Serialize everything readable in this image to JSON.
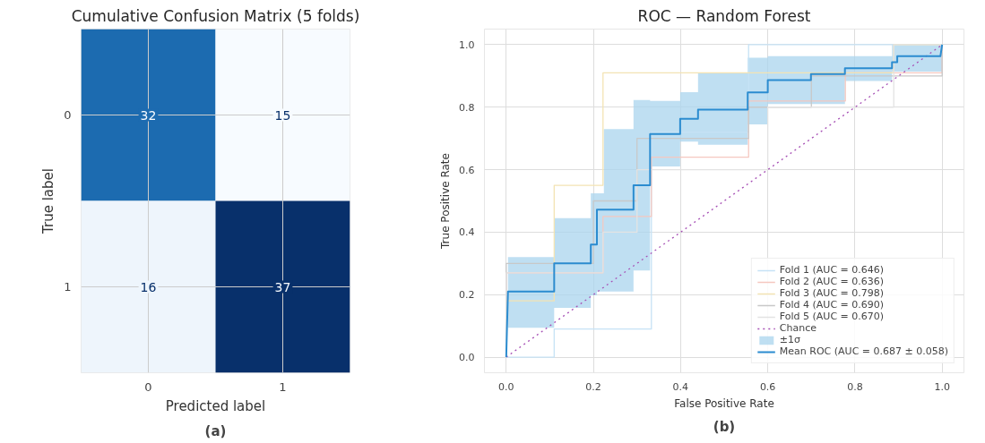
{
  "chart_data": [
    {
      "type": "heatmap",
      "title": "Cumulative Confusion Matrix (5 folds)",
      "xlabel": "Predicted label",
      "ylabel": "True label",
      "categories": [
        "0",
        "1"
      ],
      "y_categories": [
        "0",
        "1"
      ],
      "cells": [
        [
          32,
          15
        ],
        [
          16,
          37
        ]
      ],
      "data_labels": true,
      "grid": true,
      "annotations": [
        "(a)"
      ]
    },
    {
      "type": "line",
      "title": "ROC — Random Forest",
      "xlabel": "False Positive Rate",
      "ylabel": "True Positive Rate",
      "xlim": [
        -0.05,
        1.05
      ],
      "ylim": [
        -0.05,
        1.05
      ],
      "xticks": [
        {
          "value": 0,
          "label": "0.0"
        },
        0.2,
        0.4,
        0.6,
        0.8,
        {
          "value": 1,
          "label": "1.0"
        }
      ],
      "yticks": [
        {
          "value": 0,
          "label": "0.0"
        },
        0.2,
        0.4,
        0.6,
        0.8,
        {
          "value": 1,
          "label": "1.0"
        }
      ],
      "grid": true,
      "legend": "bottom right",
      "annotations": [
        "(b)"
      ],
      "series": [
        {
          "name": "Fold 1 (AUC = 0.646)",
          "color": "#c6e2f5",
          "x": [
            0,
            0.11,
            0.11,
            0.333,
            0.333,
            0.556,
            0.556,
            1
          ],
          "values": [
            0,
            0,
            0.09,
            0.09,
            0.72,
            0.72,
            1,
            1
          ]
        },
        {
          "name": "Fold 2 (AUC = 0.636)",
          "color": "#f5c8c0",
          "x": [
            0,
            0,
            0.222,
            0.222,
            0.333,
            0.333,
            0.556,
            0.556,
            0.778,
            0.778,
            1,
            1
          ],
          "values": [
            0,
            0.27,
            0.27,
            0.45,
            0.45,
            0.64,
            0.64,
            0.82,
            0.82,
            0.91,
            0.91,
            1
          ]
        },
        {
          "name": "Fold 3 (AUC = 0.798)",
          "color": "#f3e3b3",
          "x": [
            0,
            0,
            0.11,
            0.11,
            0.222,
            0.222,
            0.889,
            0.889,
            1
          ],
          "values": [
            0,
            0.18,
            0.18,
            0.55,
            0.55,
            0.91,
            0.91,
            1,
            1
          ]
        },
        {
          "name": "Fold 4 (AUC = 0.690)",
          "color": "#c8c8c8",
          "x": [
            0,
            0,
            0.2,
            0.2,
            0.3,
            0.3,
            0.556,
            0.556,
            0.7,
            0.7,
            1,
            1
          ],
          "values": [
            0,
            0.3,
            0.3,
            0.5,
            0.5,
            0.7,
            0.7,
            0.8,
            0.8,
            0.9,
            0.9,
            1
          ]
        },
        {
          "name": "Fold 5 (AUC = 0.670)",
          "color": "#e3e3e3",
          "x": [
            0,
            0,
            0.222,
            0.222,
            0.3,
            0.3,
            0.6,
            0.6,
            0.889,
            0.889,
            1
          ],
          "values": [
            0,
            0.27,
            0.27,
            0.4,
            0.4,
            0.6,
            0.6,
            0.8,
            0.8,
            1,
            1
          ]
        },
        {
          "name": "Chance",
          "color": "#a64fb5",
          "line_style": "dotted",
          "x": [
            0,
            1
          ],
          "values": [
            0,
            1
          ]
        },
        {
          "name": "±1σ",
          "type": "area",
          "color": "#a9d4ee"
        },
        {
          "name": "Mean ROC (AUC = 0.687 ± 0.058)",
          "color": "#2b8cd0",
          "x": [
            0,
            0.004,
            0.11,
            0.11,
            0.194,
            0.194,
            0.208,
            0.208,
            0.224,
            0.224,
            0.292,
            0.292,
            0.33,
            0.33,
            0.399,
            0.399,
            0.44,
            0.44,
            0.554,
            0.554,
            0.6,
            0.6,
            0.699,
            0.699,
            0.777,
            0.777,
            0.885,
            0.885,
            0.897,
            0.897,
            0.996,
            1
          ],
          "values": [
            0,
            0.21,
            0.21,
            0.3,
            0.3,
            0.36,
            0.36,
            0.472,
            0.472,
            0.472,
            0.472,
            0.55,
            0.55,
            0.714,
            0.714,
            0.763,
            0.763,
            0.792,
            0.792,
            0.847,
            0.847,
            0.887,
            0.887,
            0.906,
            0.906,
            0.925,
            0.925,
            0.944,
            0.944,
            0.963,
            0.963,
            1
          ],
          "lower": [
            null,
            0.094,
            0.094,
            0.158,
            0.158,
            0.198,
            0.198,
            0.21,
            0.21,
            0.21,
            0.21,
            0.277,
            0.277,
            0.61,
            0.61,
            0.69,
            0.69,
            0.68,
            0.68,
            0.745,
            0.745,
            0.81,
            0.81,
            0.81,
            0.81,
            0.884,
            0.884,
            0.914,
            0.914,
            0.914,
            0.914,
            0.914
          ],
          "upper": [
            null,
            0.32,
            0.32,
            0.445,
            0.445,
            0.524,
            0.524,
            0.524,
            0.524,
            0.73,
            0.73,
            0.823,
            0.823,
            0.82,
            0.82,
            0.848,
            0.848,
            0.909,
            0.909,
            0.958,
            0.958,
            0.963,
            0.963,
            0.963,
            0.963,
            0.963,
            0.963,
            1,
            1,
            1,
            1,
            1
          ]
        }
      ]
    }
  ]
}
